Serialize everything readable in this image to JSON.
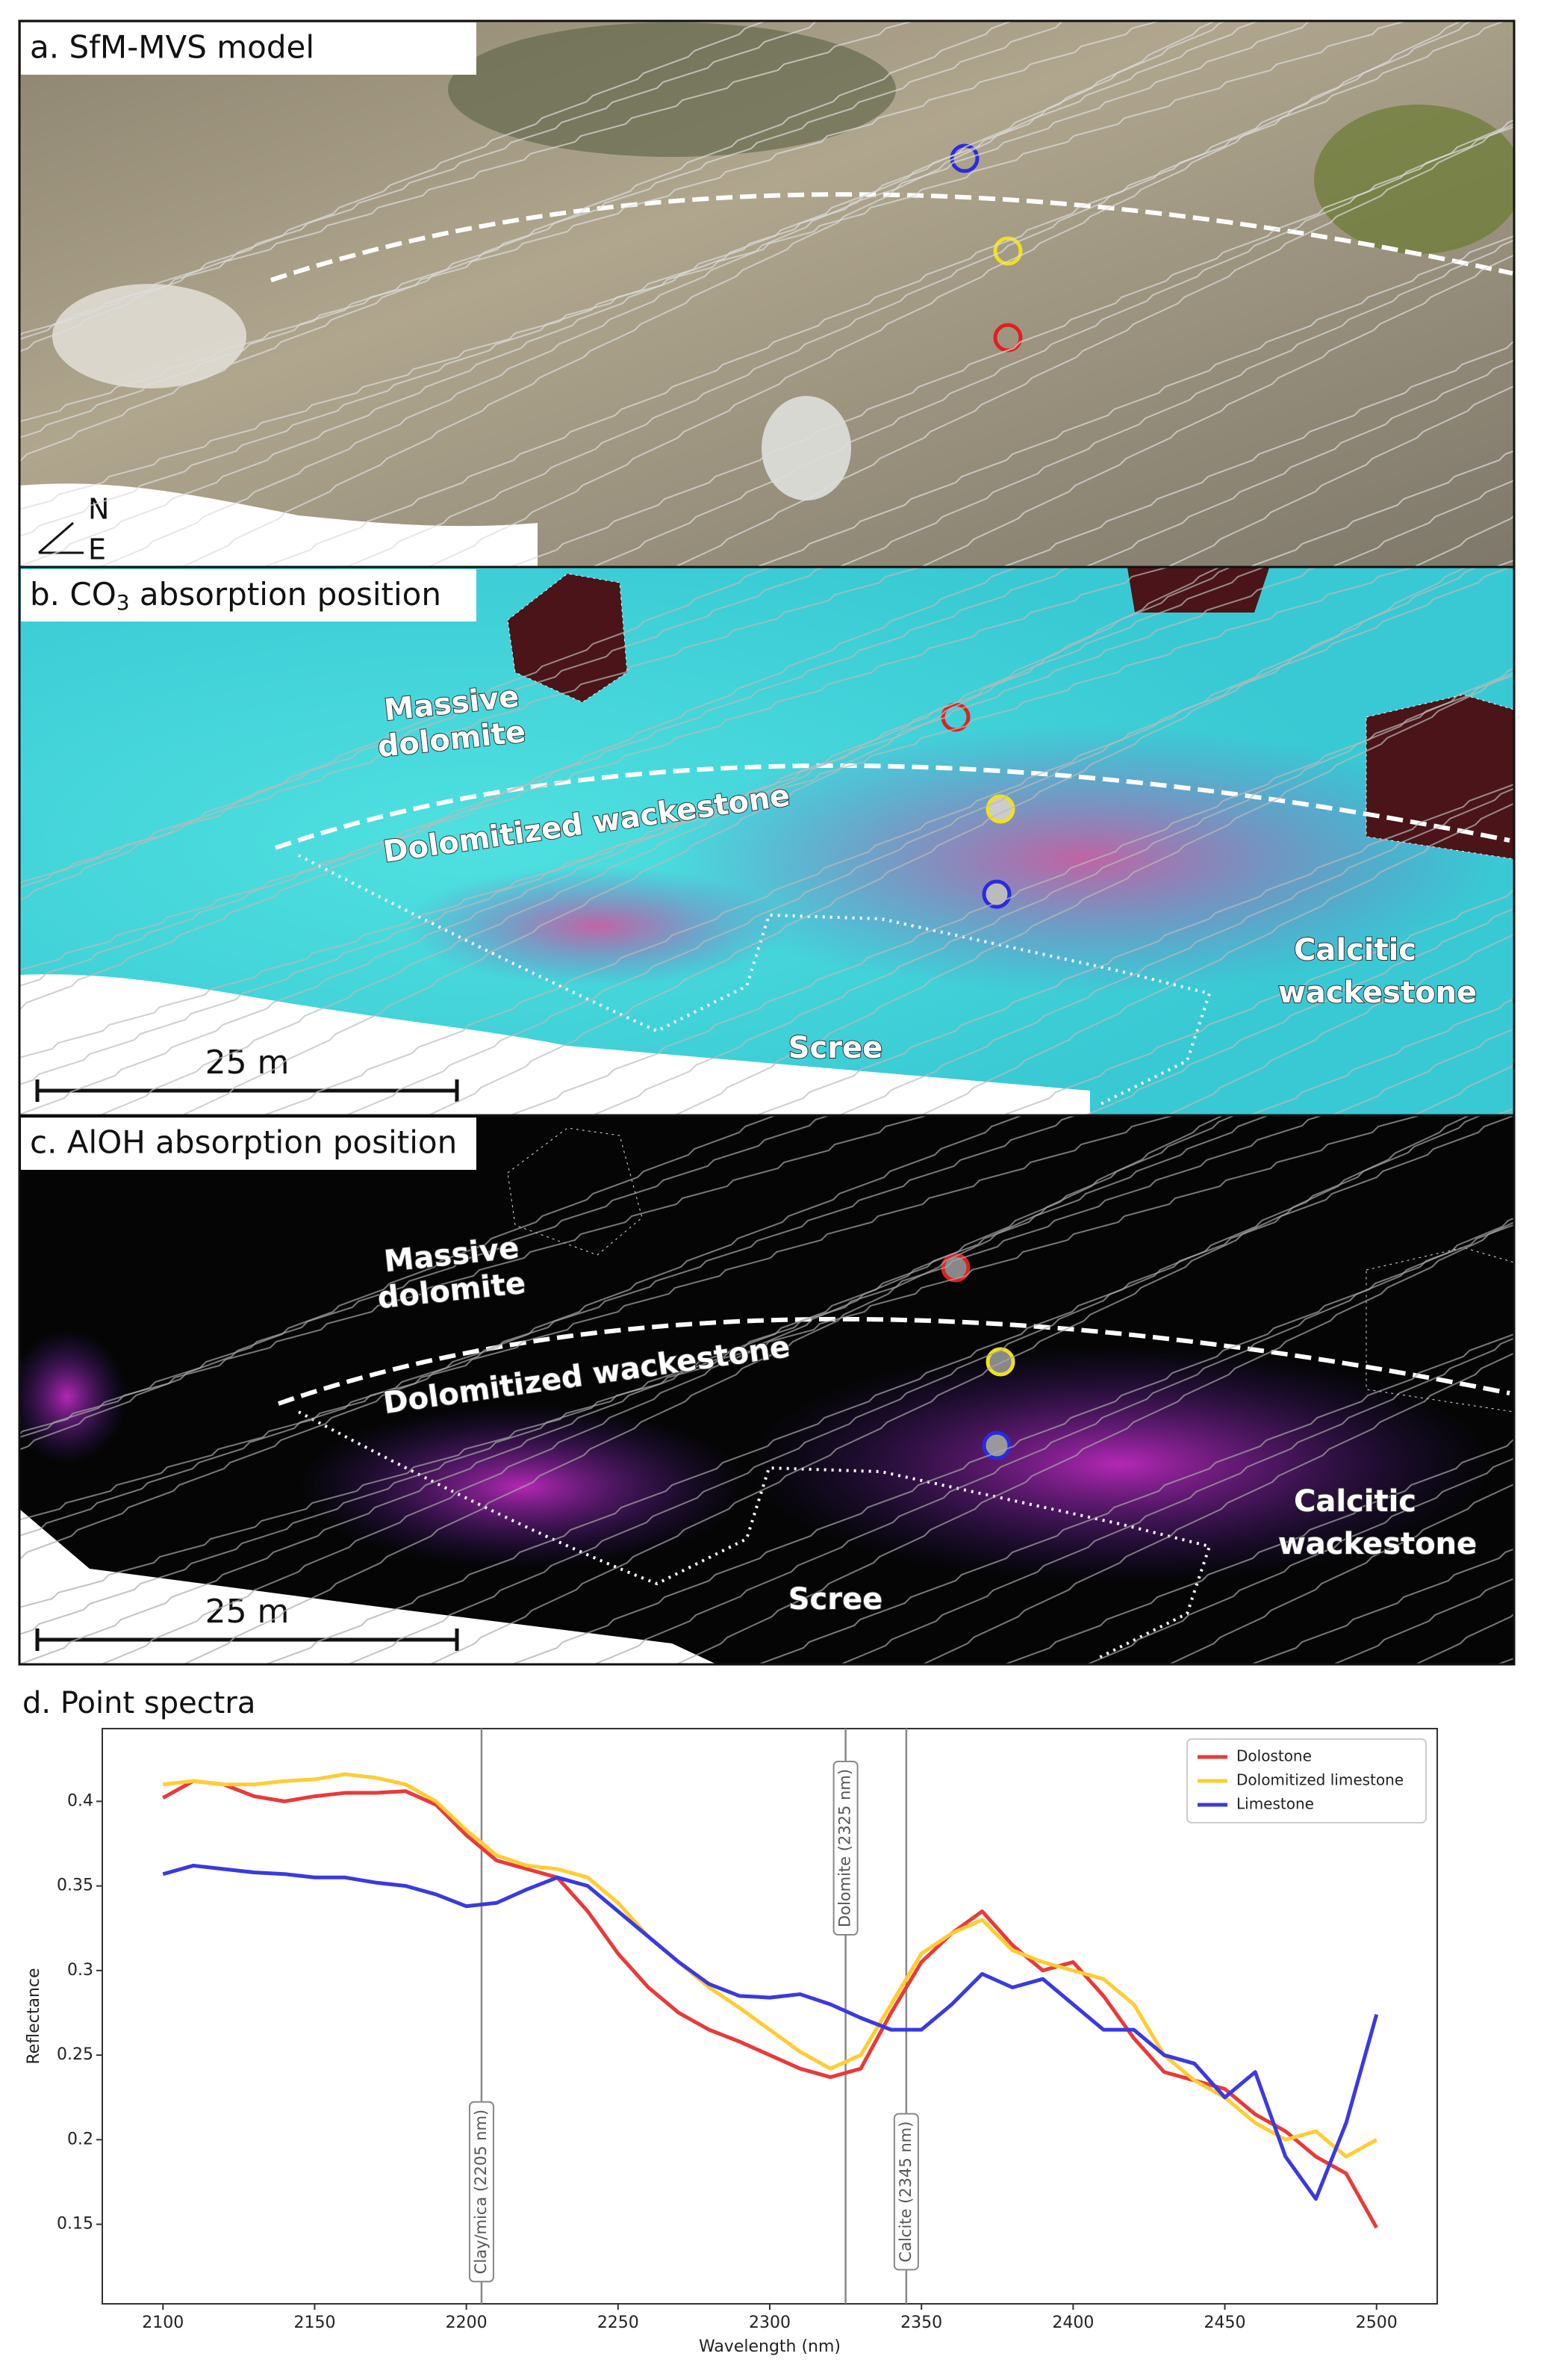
{
  "panels": [
    {
      "title": "a. SfM-MVS model",
      "north": "N",
      "east": "E"
    },
    {
      "title": {
        "pre": "b. CO",
        "sub": "3",
        "post": " absorption position"
      },
      "labels": [
        [
          "Massive",
          "dolomite"
        ],
        [
          "Dolomitized wackestone"
        ],
        [
          "Calcitic",
          "wackestone"
        ],
        [
          "Scree"
        ]
      ],
      "scale": "25 m"
    },
    {
      "title": "c. AlOH absorption position",
      "labels": [
        [
          "Massive",
          "dolomite"
        ],
        [
          "Dolomitized wackestone"
        ],
        [
          "Calcitic",
          "wackestone"
        ],
        [
          "Scree"
        ]
      ],
      "scale": "25 m"
    }
  ],
  "chart_data": {
    "type": "line",
    "title": "d. Point spectra",
    "x_label": "Wavelength (nm)",
    "y_label": "Reflectance",
    "x": [
      2100,
      2110,
      2120,
      2130,
      2140,
      2150,
      2160,
      2170,
      2180,
      2190,
      2200,
      2210,
      2220,
      2230,
      2240,
      2250,
      2260,
      2270,
      2280,
      2290,
      2300,
      2310,
      2320,
      2330,
      2340,
      2350,
      2360,
      2370,
      2380,
      2390,
      2400,
      2410,
      2420,
      2430,
      2440,
      2450,
      2460,
      2470,
      2480,
      2490,
      2500
    ],
    "series": [
      {
        "name": "Dolostone",
        "color": "#e83a3a",
        "values": [
          0.402,
          0.412,
          0.41,
          0.403,
          0.4,
          0.403,
          0.405,
          0.405,
          0.406,
          0.398,
          0.38,
          0.365,
          0.36,
          0.355,
          0.335,
          0.31,
          0.29,
          0.275,
          0.265,
          0.258,
          0.25,
          0.242,
          0.237,
          0.242,
          0.275,
          0.305,
          0.322,
          0.335,
          0.315,
          0.3,
          0.305,
          0.285,
          0.26,
          0.24,
          0.235,
          0.23,
          0.215,
          0.205,
          0.19,
          0.18,
          0.148
        ]
      },
      {
        "name": "Dolomitized limestone",
        "color": "#ffcc33",
        "values": [
          0.41,
          0.412,
          0.41,
          0.41,
          0.412,
          0.413,
          0.416,
          0.414,
          0.41,
          0.4,
          0.383,
          0.368,
          0.362,
          0.36,
          0.355,
          0.34,
          0.32,
          0.305,
          0.29,
          0.278,
          0.265,
          0.252,
          0.242,
          0.25,
          0.28,
          0.31,
          0.322,
          0.33,
          0.312,
          0.305,
          0.3,
          0.295,
          0.28,
          0.25,
          0.235,
          0.225,
          0.21,
          0.2,
          0.205,
          0.19,
          0.2
        ]
      },
      {
        "name": "Limestone",
        "color": "#3a3ae0",
        "values": [
          0.357,
          0.362,
          0.36,
          0.358,
          0.357,
          0.355,
          0.355,
          0.352,
          0.35,
          0.345,
          0.338,
          0.34,
          0.348,
          0.355,
          0.35,
          0.335,
          0.32,
          0.305,
          0.292,
          0.285,
          0.284,
          0.286,
          0.28,
          0.272,
          0.265,
          0.265,
          0.28,
          0.298,
          0.29,
          0.295,
          0.28,
          0.265,
          0.265,
          0.25,
          0.245,
          0.225,
          0.24,
          0.19,
          0.165,
          0.21,
          0.274
        ]
      }
    ],
    "annotations": [
      {
        "x": 2205,
        "label": "Clay/mica (2205 nm)",
        "position": "bottom"
      },
      {
        "x": 2325,
        "label": "Dolomite (2325 nm)",
        "position": "top"
      },
      {
        "x": 2345,
        "label": "Calcite (2345 nm)",
        "position": "bottom"
      }
    ],
    "xlim": [
      2080,
      2520
    ],
    "xticks": [
      2100,
      2150,
      2200,
      2250,
      2300,
      2350,
      2400,
      2450,
      2500
    ],
    "ylim": [
      0.103,
      0.443
    ],
    "yticks": [
      0.15,
      0.2,
      0.25,
      0.3,
      0.35,
      0.4
    ],
    "legend": "upper right",
    "grid": false
  }
}
